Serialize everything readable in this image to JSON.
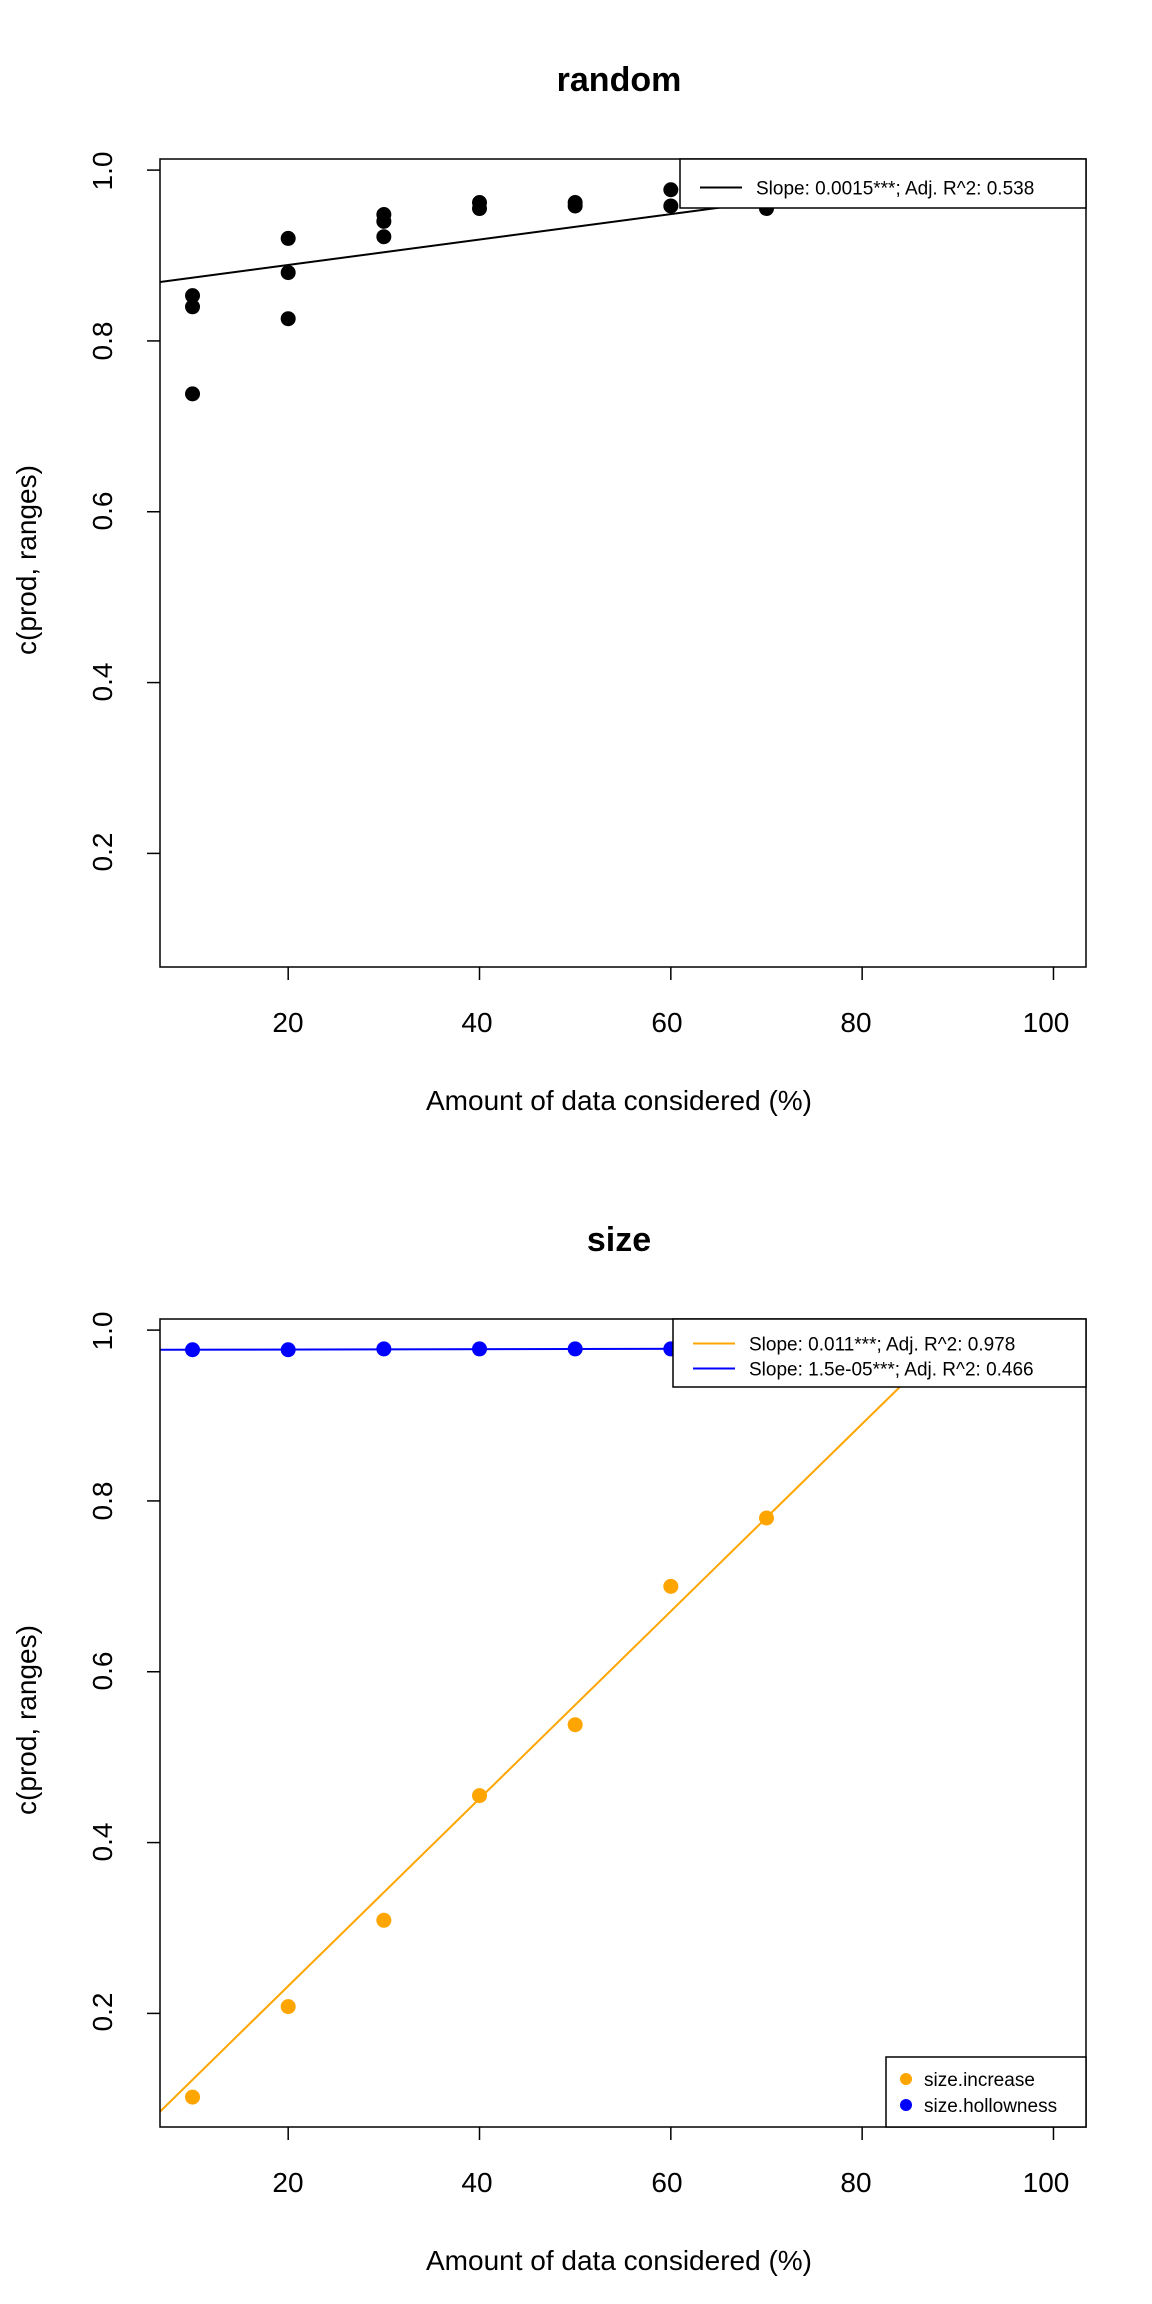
{
  "chart_data": [
    {
      "type": "scatter",
      "title": "random",
      "xlabel": "Amount of data considered (%)",
      "ylabel": "c(prod, ranges)",
      "xlim": [
        6.6,
        103.4
      ],
      "ylim": [
        0.067,
        1.013
      ],
      "xticks": [
        "20",
        "40",
        "60",
        "80",
        "100"
      ],
      "yticks": [
        "0.2",
        "0.4",
        "0.6",
        "0.8",
        "1.0"
      ],
      "legend_position": "top-right",
      "series": [
        {
          "color": "#000000",
          "points": [
            {
              "x": 10,
              "y": 0.853
            },
            {
              "x": 10,
              "y": 0.84
            },
            {
              "x": 10,
              "y": 0.738
            },
            {
              "x": 20,
              "y": 0.92
            },
            {
              "x": 20,
              "y": 0.88
            },
            {
              "x": 20,
              "y": 0.826
            },
            {
              "x": 30,
              "y": 0.948
            },
            {
              "x": 30,
              "y": 0.94
            },
            {
              "x": 30,
              "y": 0.922
            },
            {
              "x": 40,
              "y": 0.962
            },
            {
              "x": 40,
              "y": 0.955
            },
            {
              "x": 50,
              "y": 0.962
            },
            {
              "x": 50,
              "y": 0.958
            },
            {
              "x": 60,
              "y": 0.977
            },
            {
              "x": 60,
              "y": 0.958
            },
            {
              "x": 70,
              "y": 0.955
            }
          ]
        }
      ],
      "fits": [
        {
          "label": "Slope: 0.0015***; Adj. R^2: 0.538",
          "color": "#000000",
          "x": [
            6.6,
            103.4
          ],
          "y": [
            0.869,
            1.013
          ]
        }
      ]
    },
    {
      "type": "scatter",
      "title": "size",
      "xlabel": "Amount of data considered (%)",
      "ylabel": "c(prod, ranges)",
      "xlim": [
        6.6,
        103.4
      ],
      "ylim": [
        0.067,
        1.013
      ],
      "xticks": [
        "20",
        "40",
        "60",
        "80",
        "100"
      ],
      "yticks": [
        "0.2",
        "0.4",
        "0.6",
        "0.8",
        "1.0"
      ],
      "legend_position": "top-right",
      "points_legend": {
        "position": "bottom-right",
        "entries": [
          {
            "label": "size.increase",
            "color": "#FFA500"
          },
          {
            "label": "size.hollowness",
            "color": "#0000FF"
          }
        ]
      },
      "series": [
        {
          "name": "size.increase",
          "color": "#FFA500",
          "points": [
            {
              "x": 10,
              "y": 0.102
            },
            {
              "x": 20,
              "y": 0.208
            },
            {
              "x": 30,
              "y": 0.309
            },
            {
              "x": 40,
              "y": 0.455
            },
            {
              "x": 50,
              "y": 0.538
            },
            {
              "x": 60,
              "y": 0.7
            },
            {
              "x": 70,
              "y": 0.78
            }
          ]
        },
        {
          "name": "size.hollowness",
          "color": "#0000FF",
          "points": [
            {
              "x": 10,
              "y": 0.977
            },
            {
              "x": 20,
              "y": 0.977
            },
            {
              "x": 30,
              "y": 0.978
            },
            {
              "x": 40,
              "y": 0.978
            },
            {
              "x": 50,
              "y": 0.978
            },
            {
              "x": 60,
              "y": 0.978
            }
          ]
        }
      ],
      "fits": [
        {
          "label": "Slope: 0.011***; Adj. R^2: 0.978",
          "color": "#FFA500",
          "x": [
            6.6,
            88.0
          ],
          "y": [
            0.085,
            0.978
          ]
        },
        {
          "label": "Slope: 1.5e-05***; Adj. R^2: 0.466",
          "color": "#0000FF",
          "x": [
            6.6,
            103.4
          ],
          "y": [
            0.977,
            0.979
          ]
        }
      ]
    }
  ]
}
